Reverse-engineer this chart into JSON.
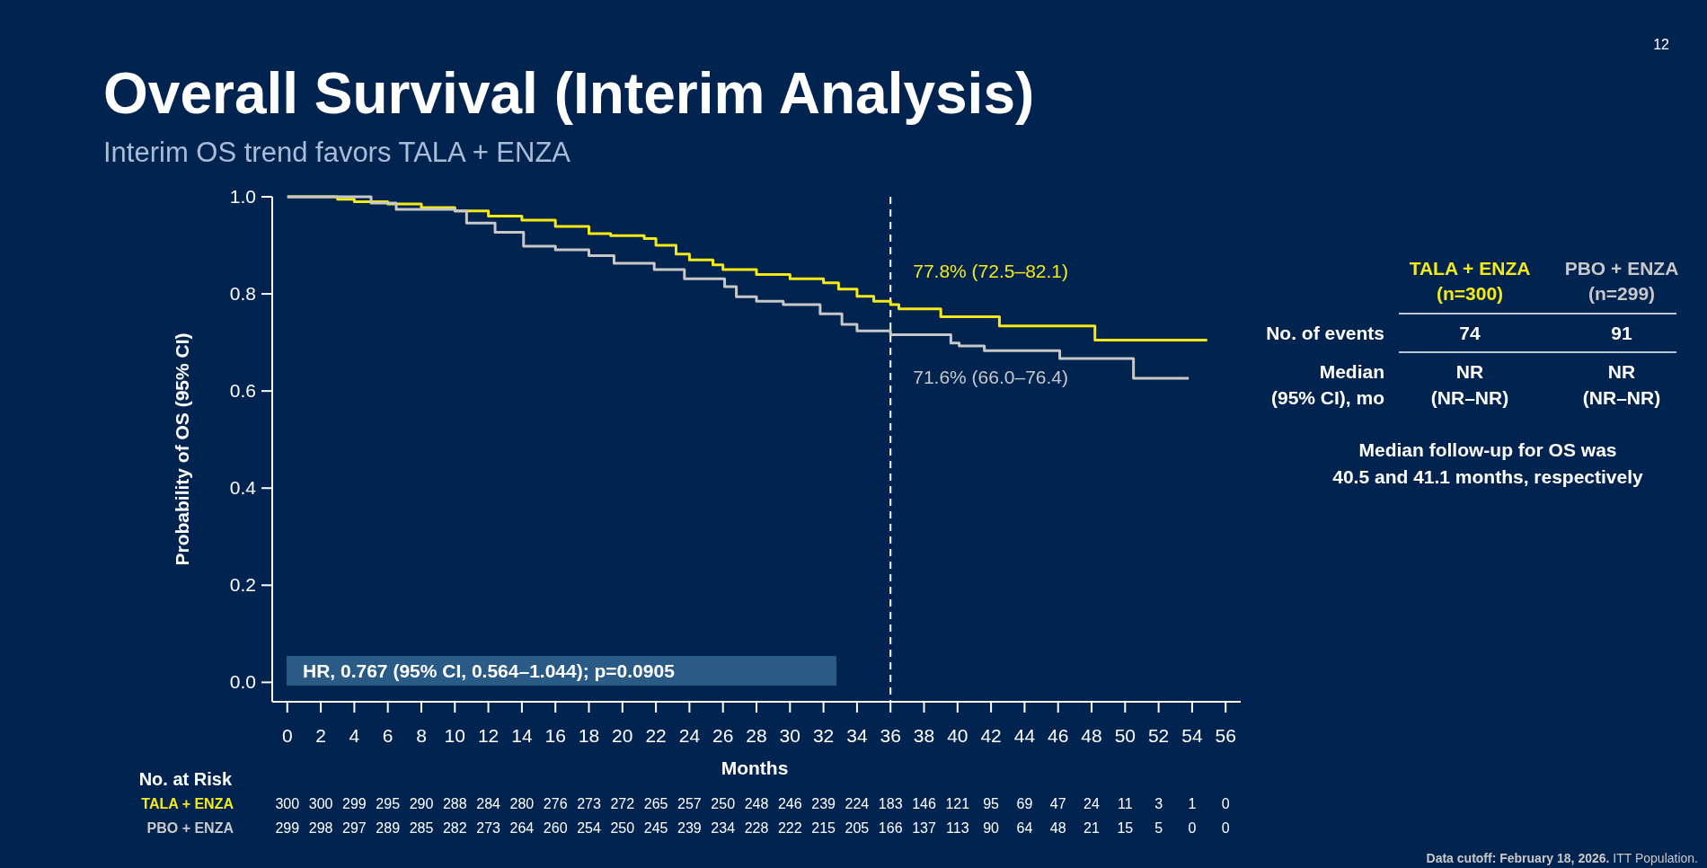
{
  "chart_data": {
    "type": "step",
    "title": "Overall Survival (Interim Analysis)",
    "subtitle": "Interim OS trend favors TALA + ENZA",
    "xlabel": "Months",
    "ylabel": "Probability of OS (95% CI)",
    "xlim": [
      -0.9,
      56.9
    ],
    "xticks": [
      0,
      2,
      4,
      6,
      8,
      10,
      12,
      14,
      16,
      18,
      20,
      22,
      24,
      26,
      28,
      30,
      32,
      34,
      36,
      38,
      40,
      42,
      44,
      46,
      48,
      50,
      52,
      54,
      56
    ],
    "ylim": [
      -0.04,
      1.0
    ],
    "yticks": [
      {
        "value": 0,
        "label": "0.0"
      },
      {
        "value": 0.2,
        "label": "0.2"
      },
      {
        "value": 0.4,
        "label": "0.4"
      },
      {
        "value": 0.6,
        "label": "0.6"
      },
      {
        "value": 0.8,
        "label": "0.8"
      },
      {
        "value": 1,
        "label": "1.0"
      }
    ],
    "grid": false,
    "ref_lines": [
      {
        "axis": "x",
        "value": 36,
        "color": "#ffffff",
        "line_style": "dashed"
      }
    ],
    "series": [
      {
        "name": "TALA + ENZA",
        "color": "#f5ea14",
        "x": [
          0,
          3,
          4,
          6,
          8,
          10,
          12,
          14,
          16,
          18,
          19.3,
          21.3,
          22,
          23.2,
          24,
          25.4,
          26,
          28,
          30,
          32,
          32.9,
          34,
          35,
          36,
          36.5,
          39,
          42.5,
          48.2,
          54.9
        ],
        "values": [
          1,
          0.995,
          0.99,
          0.985,
          0.978,
          0.971,
          0.96,
          0.952,
          0.939,
          0.924,
          0.92,
          0.914,
          0.9,
          0.882,
          0.87,
          0.86,
          0.85,
          0.84,
          0.831,
          0.823,
          0.81,
          0.795,
          0.785,
          0.778,
          0.769,
          0.753,
          0.734,
          0.705,
          0.705
        ]
      },
      {
        "name": "PBO + ENZA",
        "color": "#c8c8c8",
        "x": [
          0,
          4,
          5,
          6.5,
          10,
          10.7,
          12.4,
          14.1,
          16,
          18,
          19.5,
          21.9,
          23.7,
          26.1,
          26.8,
          28,
          29.6,
          31.8,
          33.1,
          34,
          36,
          39.6,
          40.1,
          41.6,
          46.1,
          50.5,
          53.8
        ],
        "values": [
          1,
          1,
          0.987,
          0.974,
          0.971,
          0.946,
          0.927,
          0.898,
          0.891,
          0.879,
          0.863,
          0.85,
          0.831,
          0.815,
          0.794,
          0.785,
          0.778,
          0.759,
          0.737,
          0.724,
          0.716,
          0.699,
          0.693,
          0.683,
          0.667,
          0.626,
          0.626
        ]
      }
    ],
    "annotations": [
      "12",
      "HR, 0.767 (95% CI, 0.564–1.044); p=0.0905",
      {
        "text": "77.8% (72.5–82.1)",
        "x": 36,
        "y": 0.778
      },
      {
        "text": "71.6% (66.0–76.4)",
        "x": 36,
        "y": 0.716
      },
      "No. at Risk",
      "300 300 299 295 290 288 284 280 276 273 272 265 257 250 248 246 239 224 183 146 121 95 69 47 24 11 3 1 0",
      "299 298 297 289 285 282 273 264 260 254 250 245 239 234 228 222 215 205 166 137 113 90 64 48 21 15 5 0 0",
      "(n=300)",
      "(n=299)",
      "No. of events",
      "74",
      "91",
      "Median",
      "(95% CI), mo",
      "NR",
      "(NR–NR)",
      "NR",
      "(NR–NR)",
      "Median follow-up for OS was",
      "40.5 and 41.1 months, respectively",
      "Data cutoff: February 18, 2026.",
      "ITT Population."
    ]
  }
}
